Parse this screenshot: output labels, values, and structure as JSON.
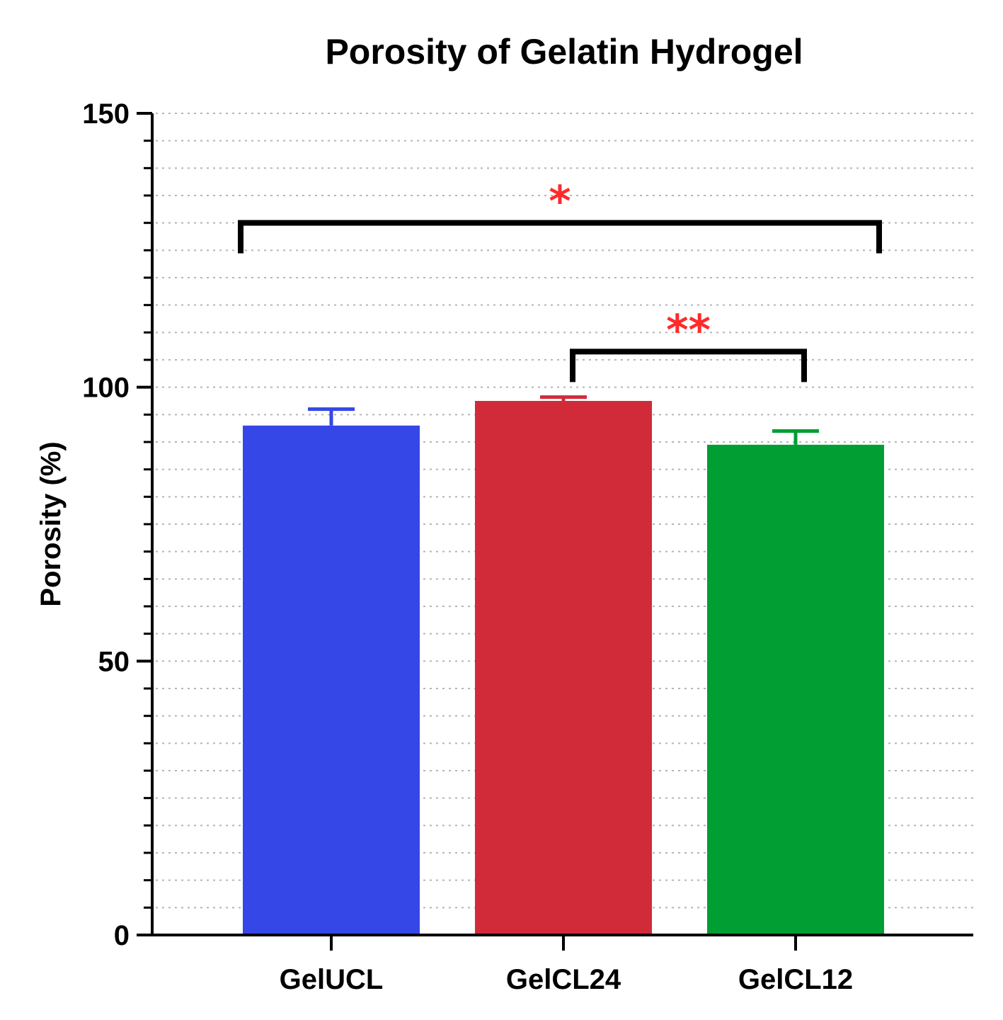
{
  "chart_data": {
    "type": "bar",
    "title": "Porosity of Gelatin Hydrogel",
    "xlabel": "",
    "ylabel": "Porosity (%)",
    "ylim": [
      0,
      150
    ],
    "yticks": [
      0,
      50,
      100,
      150
    ],
    "minor_tick_step": 5,
    "grid": "dotted horizontal",
    "categories": [
      "GelUCL",
      "GelCL24",
      "GelCL12"
    ],
    "values": [
      93,
      97.5,
      89.5
    ],
    "errors": [
      3,
      0.7,
      2.5
    ],
    "colors": [
      "#3547e6",
      "#d12b3a",
      "#009e33"
    ],
    "significance": [
      {
        "from": 0,
        "to": 2,
        "label": "*",
        "y": 130,
        "drop": 4,
        "color": "#ff2a2a"
      },
      {
        "from": 1,
        "to": 2,
        "label": "**",
        "y": 106.5,
        "drop": 4,
        "color": "#ff2a2a"
      }
    ]
  }
}
